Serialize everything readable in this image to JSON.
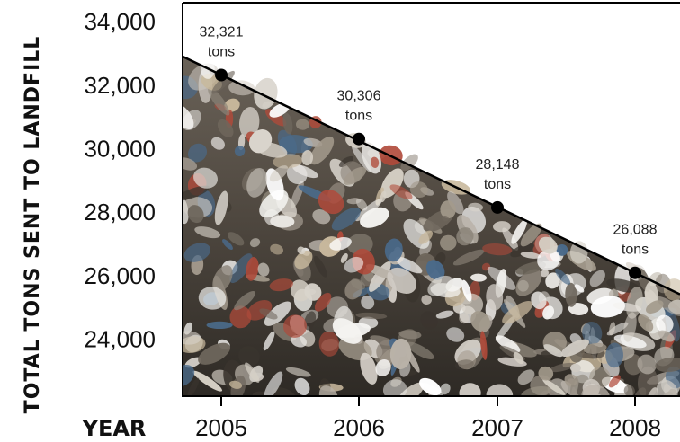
{
  "chart_data": {
    "type": "line",
    "x": [
      "2005",
      "2006",
      "2007",
      "2008"
    ],
    "series": [
      {
        "values": [
          32321,
          30306,
          28148,
          26088
        ]
      }
    ],
    "data_labels": [
      [
        "32,321",
        "tons"
      ],
      [
        "30,306",
        "tons"
      ],
      [
        "28,148",
        "tons"
      ],
      [
        "26,088",
        "tons"
      ]
    ],
    "ylabel": "TOTAL TONS SENT TO LANDFILL",
    "xlabel": "YEAR",
    "yticks": [
      "24,000",
      "26,000",
      "28,000",
      "30,000",
      "32,000",
      "34,000"
    ],
    "ytick_values": [
      24000,
      26000,
      28000,
      30000,
      32000,
      34000
    ],
    "ylim": [
      22200,
      34600
    ],
    "grid": false,
    "background": "photo of landfill garbage filling the area under the line",
    "colors": {
      "line": "#000000",
      "point": "#000000",
      "frame": "#000000"
    }
  }
}
